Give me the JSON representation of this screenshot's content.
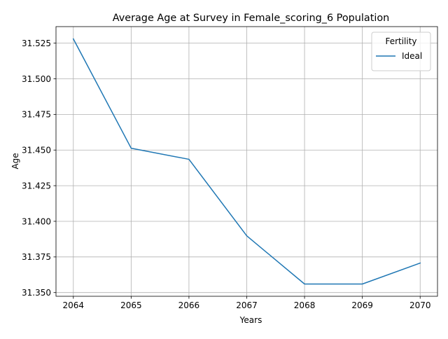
{
  "chart_data": {
    "type": "line",
    "title": "Average Age at Survey in Female_scoring_6 Population",
    "xlabel": "Years",
    "ylabel": "Age",
    "x": [
      2064,
      2065,
      2066,
      2067,
      2068,
      2069,
      2070
    ],
    "series": [
      {
        "name": "Ideal",
        "color": "#1f77b4",
        "values": [
          31.528,
          31.4513,
          31.4435,
          31.3898,
          31.356,
          31.356,
          31.3707
        ]
      }
    ],
    "xticks": [
      "2064",
      "2065",
      "2066",
      "2067",
      "2068",
      "2069",
      "2070"
    ],
    "yticks": [
      "31.350",
      "31.375",
      "31.400",
      "31.425",
      "31.450",
      "31.475",
      "31.500",
      "31.525"
    ],
    "xlim": [
      2063.7,
      2070.3
    ],
    "ylim": [
      31.3474,
      31.5366
    ],
    "grid": true,
    "legend": {
      "title": "Fertility",
      "placement": "top-right"
    }
  }
}
